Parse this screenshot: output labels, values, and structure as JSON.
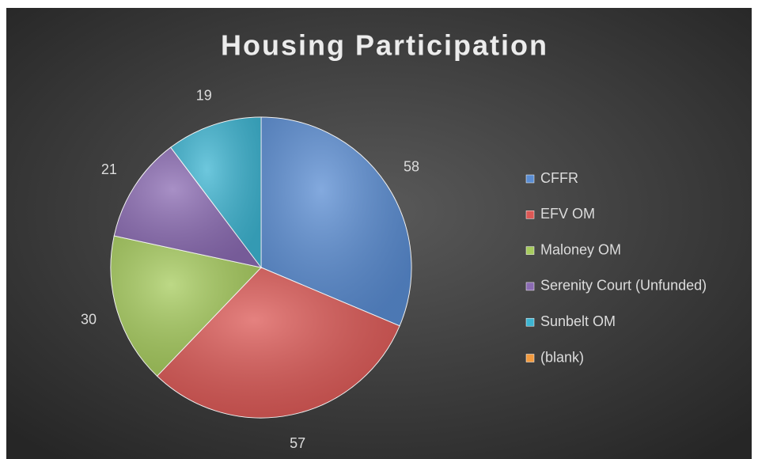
{
  "chart_data": {
    "type": "pie",
    "title": "Housing Participation",
    "categories": [
      "CFFR",
      "EFV OM",
      "Maloney OM",
      "Serenity Court (Unfunded)",
      "Sunbelt OM",
      "(blank)"
    ],
    "values": [
      58,
      57,
      30,
      21,
      19,
      null
    ],
    "colors": [
      "#5a8dd3",
      "#dc5855",
      "#a7cc5e",
      "#8b6bb3",
      "#3db5d2",
      "#f29a3e"
    ],
    "legend": "right"
  }
}
